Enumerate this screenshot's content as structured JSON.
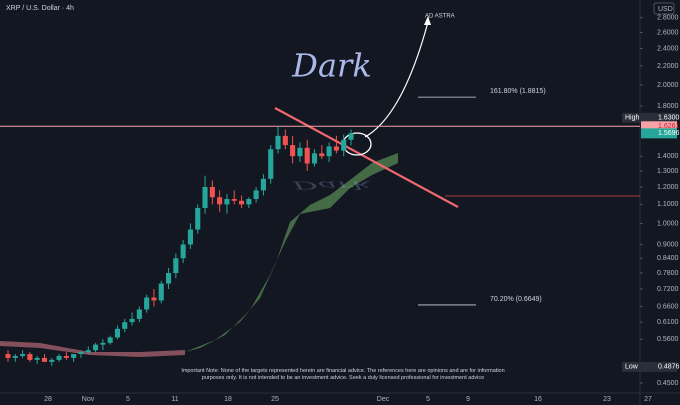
{
  "chart_data": {
    "type": "candlestick",
    "title": "XRP / U.S. Dollar · 4h",
    "currency": "USD",
    "log_scale": true,
    "up_color": "#26a69a",
    "down_color": "#ef5350",
    "ylim": [
      0.43,
      3.06
    ],
    "yticks": [
      {
        "value": 2.8,
        "label": "2.8000"
      },
      {
        "value": 2.6,
        "label": "2.6000"
      },
      {
        "value": 2.4,
        "label": "2.4000"
      },
      {
        "value": 2.2,
        "label": "2.2000"
      },
      {
        "value": 2.0,
        "label": "2.0000"
      },
      {
        "value": 1.8,
        "label": "1.8000"
      },
      {
        "value": 1.4,
        "label": "1.4000"
      },
      {
        "value": 1.3,
        "label": "1.3000"
      },
      {
        "value": 1.2,
        "label": "1.2000"
      },
      {
        "value": 1.1,
        "label": "1.1000"
      },
      {
        "value": 1.0,
        "label": "1.0000"
      },
      {
        "value": 0.9,
        "label": "0.9000"
      },
      {
        "value": 0.84,
        "label": "0.8400"
      },
      {
        "value": 0.78,
        "label": "0.7800"
      },
      {
        "value": 0.72,
        "label": "0.7200"
      },
      {
        "value": 0.66,
        "label": "0.6600"
      },
      {
        "value": 0.61,
        "label": "0.6100"
      },
      {
        "value": 0.56,
        "label": "0.5600"
      },
      {
        "value": 0.45,
        "label": "0.4500"
      }
    ],
    "xtick_labels": [
      "28",
      "Nov",
      "5",
      "11",
      "18",
      "25",
      "Dec",
      "5",
      "9",
      "16",
      "23",
      "27"
    ],
    "candles": [
      [
        0.52,
        0.53,
        0.5,
        0.51
      ],
      [
        0.51,
        0.52,
        0.5,
        0.515
      ],
      [
        0.515,
        0.53,
        0.51,
        0.52
      ],
      [
        0.52,
        0.525,
        0.5,
        0.505
      ],
      [
        0.505,
        0.515,
        0.495,
        0.51
      ],
      [
        0.51,
        0.52,
        0.5,
        0.5
      ],
      [
        0.5,
        0.51,
        0.49,
        0.505
      ],
      [
        0.505,
        0.52,
        0.5,
        0.515
      ],
      [
        0.515,
        0.525,
        0.505,
        0.51
      ],
      [
        0.51,
        0.52,
        0.5,
        0.52
      ],
      [
        0.52,
        0.53,
        0.51,
        0.525
      ],
      [
        0.525,
        0.54,
        0.52,
        0.53
      ],
      [
        0.53,
        0.55,
        0.525,
        0.545
      ],
      [
        0.545,
        0.56,
        0.53,
        0.55
      ],
      [
        0.55,
        0.57,
        0.545,
        0.565
      ],
      [
        0.565,
        0.6,
        0.56,
        0.59
      ],
      [
        0.59,
        0.62,
        0.58,
        0.61
      ],
      [
        0.61,
        0.64,
        0.6,
        0.62
      ],
      [
        0.62,
        0.66,
        0.61,
        0.65
      ],
      [
        0.65,
        0.7,
        0.64,
        0.69
      ],
      [
        0.69,
        0.72,
        0.66,
        0.68
      ],
      [
        0.68,
        0.75,
        0.67,
        0.74
      ],
      [
        0.74,
        0.8,
        0.72,
        0.78
      ],
      [
        0.78,
        0.86,
        0.76,
        0.84
      ],
      [
        0.84,
        0.92,
        0.82,
        0.9
      ],
      [
        0.9,
        1.0,
        0.88,
        0.97
      ],
      [
        0.97,
        1.1,
        0.95,
        1.08
      ],
      [
        1.08,
        1.27,
        1.05,
        1.2
      ],
      [
        1.2,
        1.24,
        1.1,
        1.14
      ],
      [
        1.14,
        1.18,
        1.06,
        1.1
      ],
      [
        1.1,
        1.16,
        1.05,
        1.13
      ],
      [
        1.13,
        1.18,
        1.1,
        1.12
      ],
      [
        1.12,
        1.15,
        1.08,
        1.1
      ],
      [
        1.1,
        1.14,
        1.08,
        1.13
      ],
      [
        1.13,
        1.2,
        1.11,
        1.18
      ],
      [
        1.18,
        1.28,
        1.15,
        1.25
      ],
      [
        1.25,
        1.48,
        1.22,
        1.45
      ],
      [
        1.45,
        1.63,
        1.42,
        1.55
      ],
      [
        1.55,
        1.6,
        1.45,
        1.48
      ],
      [
        1.48,
        1.55,
        1.35,
        1.4
      ],
      [
        1.4,
        1.5,
        1.36,
        1.46
      ],
      [
        1.46,
        1.52,
        1.3,
        1.35
      ],
      [
        1.35,
        1.45,
        1.33,
        1.42
      ],
      [
        1.42,
        1.48,
        1.38,
        1.4
      ],
      [
        1.4,
        1.5,
        1.36,
        1.47
      ],
      [
        1.47,
        1.55,
        1.42,
        1.44
      ],
      [
        1.44,
        1.56,
        1.4,
        1.52
      ],
      [
        1.52,
        1.6,
        1.48,
        1.5696
      ]
    ],
    "price_labels": [
      {
        "name": "High",
        "value": 1.63,
        "label": "1.6300",
        "color": "#2a2e39"
      },
      {
        "value": 1.6261,
        "label": "1.6261",
        "color": "#f7a1a8"
      },
      {
        "value": 1.5696,
        "label": "1.5696",
        "color": "#26a69a"
      },
      {
        "name": "Low",
        "value": 0.4876,
        "label": "0.4876",
        "color": "#2a2e39"
      }
    ],
    "levels": [
      {
        "label": "161.80% (1.8815)",
        "value": 1.8815
      },
      {
        "label": "70.20% (0.6649)",
        "value": 0.6649
      }
    ],
    "annotations": {
      "target": "AD ASTRA",
      "brand": "Dark"
    },
    "note": "Important Note: None of the targets represented herein are financial advice. The references here are opinions and are for information purposes only. It is not intended to be an investment advice. Seek a duly licensed professional for investment advice"
  }
}
